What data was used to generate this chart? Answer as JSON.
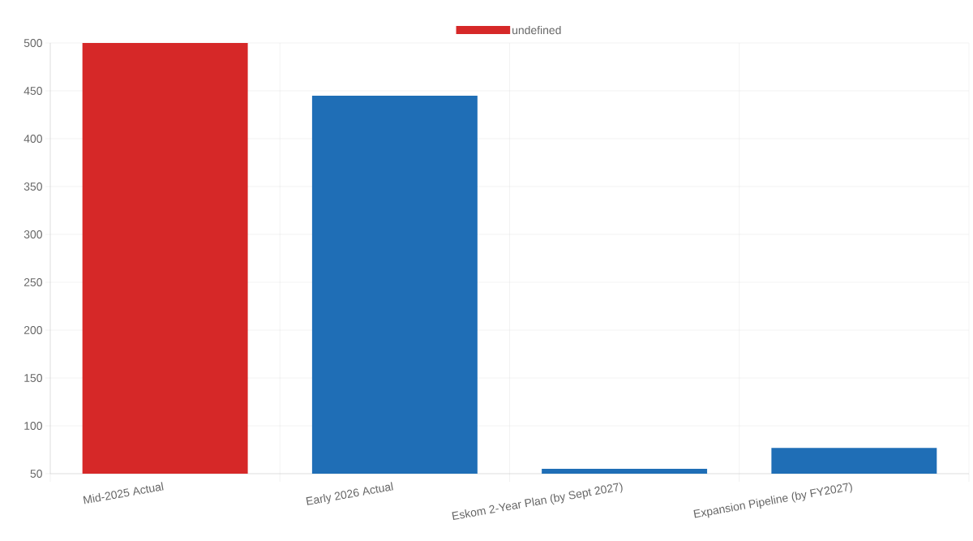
{
  "chart_data": {
    "type": "bar",
    "categories": [
      "Mid-2025 Actual",
      "Early 2026 Actual",
      "Eskom 2-Year Plan (by Sept 2027)",
      "Expansion Pipeline (by FY2027)"
    ],
    "series": [
      {
        "name": "undefined",
        "color": "#d62828",
        "colors": [
          "#d62828",
          "#1f6eb6",
          "#1f6eb6",
          "#1f6eb6"
        ],
        "values": [
          500,
          445,
          55,
          77
        ]
      }
    ],
    "ylim": [
      50,
      500
    ],
    "yticks": [
      50,
      100,
      150,
      200,
      250,
      300,
      350,
      400,
      450,
      500
    ],
    "grid": true,
    "legend": "top"
  }
}
